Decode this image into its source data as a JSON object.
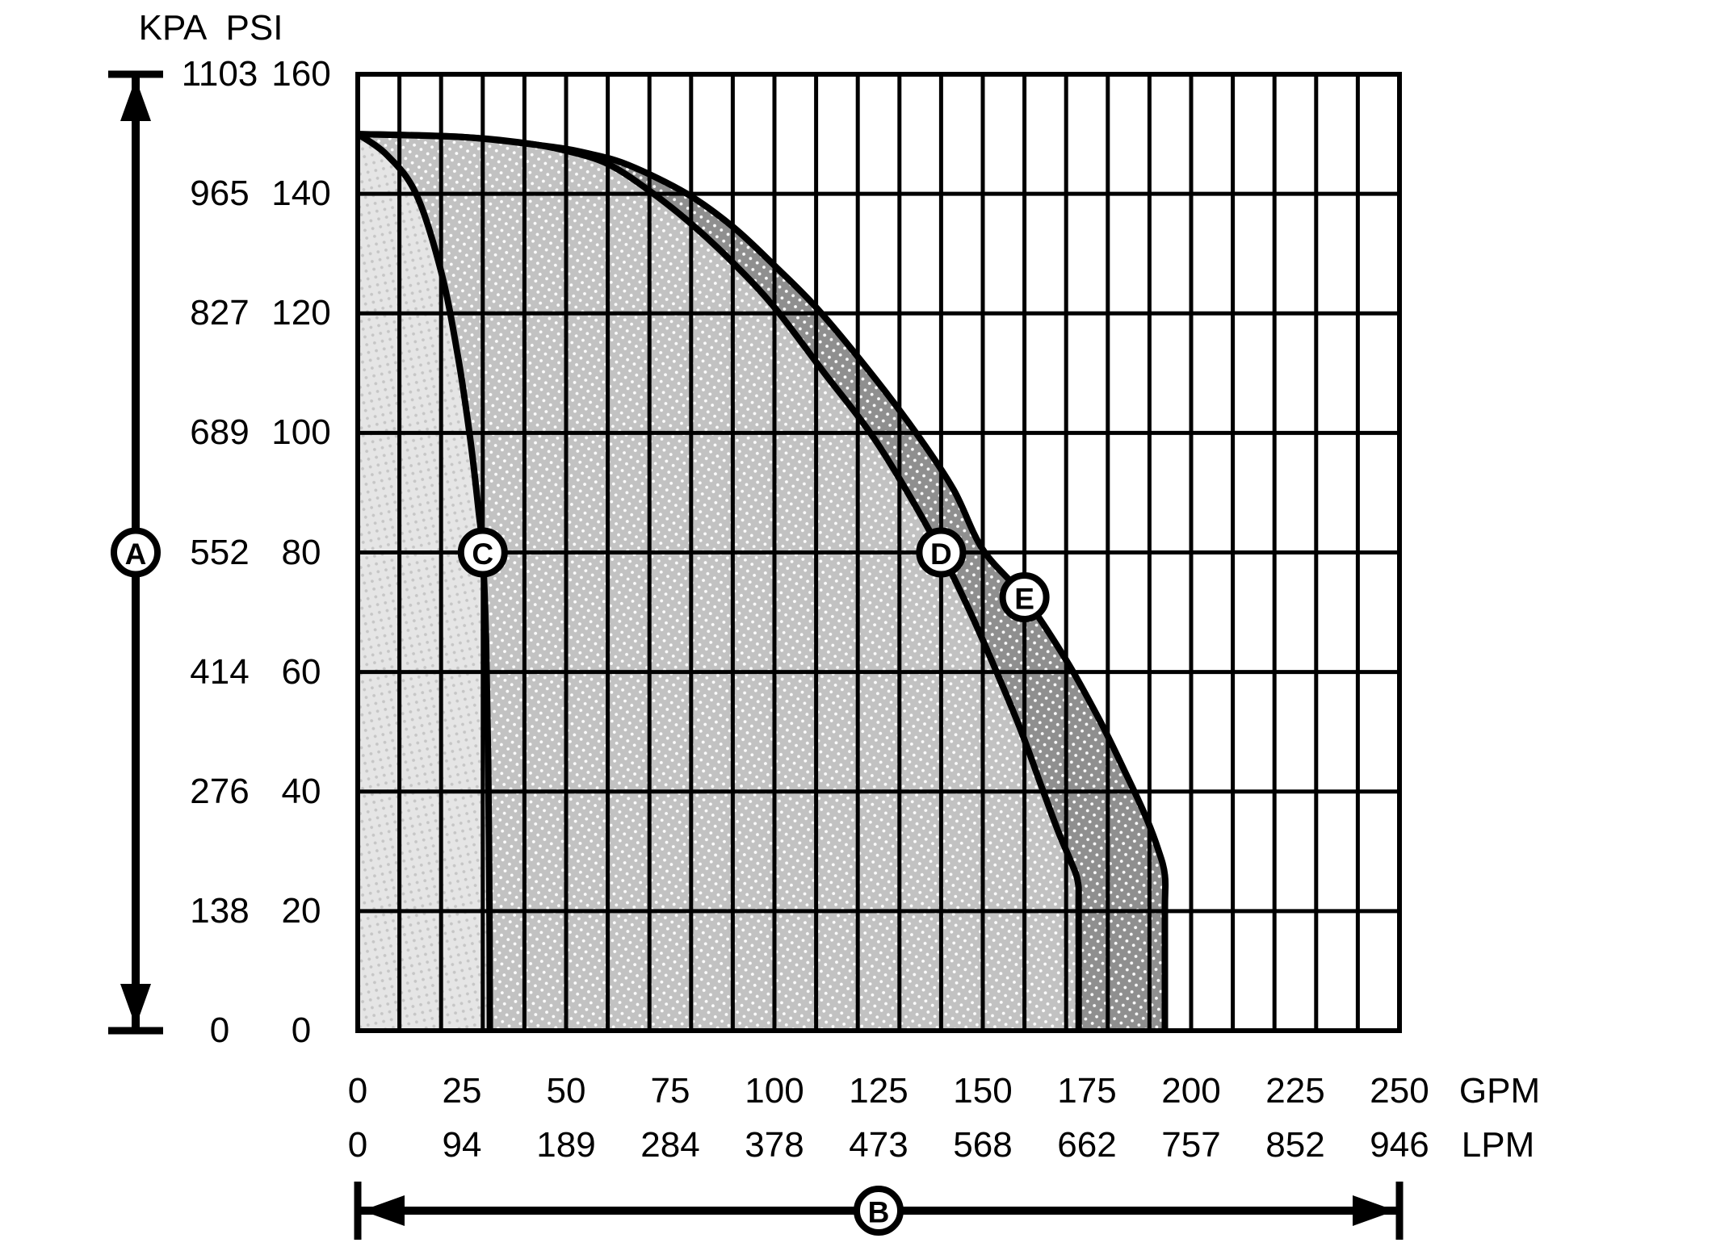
{
  "y_axis": {
    "unit_kpa": "KPA",
    "unit_psi": "PSI",
    "ticks": [
      {
        "kpa": "1103",
        "psi": 160
      },
      {
        "kpa": "965",
        "psi": 140
      },
      {
        "kpa": "827",
        "psi": 120
      },
      {
        "kpa": "689",
        "psi": 100
      },
      {
        "kpa": "552",
        "psi": 80
      },
      {
        "kpa": "414",
        "psi": 60
      },
      {
        "kpa": "276",
        "psi": 40
      },
      {
        "kpa": "138",
        "psi": 20
      },
      {
        "kpa": "0",
        "psi": 0
      }
    ]
  },
  "x_axis": {
    "unit_gpm": "GPM",
    "unit_lpm": "LPM",
    "ticks": [
      {
        "gpm": 0,
        "lpm": "0"
      },
      {
        "gpm": 25,
        "lpm": "94"
      },
      {
        "gpm": 50,
        "lpm": "189"
      },
      {
        "gpm": 75,
        "lpm": "284"
      },
      {
        "gpm": 100,
        "lpm": "378"
      },
      {
        "gpm": 125,
        "lpm": "473"
      },
      {
        "gpm": 150,
        "lpm": "568"
      },
      {
        "gpm": 175,
        "lpm": "662"
      },
      {
        "gpm": 200,
        "lpm": "757"
      },
      {
        "gpm": 225,
        "lpm": "852"
      },
      {
        "gpm": 250,
        "lpm": "946"
      }
    ]
  },
  "chart_data": {
    "type": "area",
    "title": "",
    "description": "Pump performance envelope chart: discharge pressure (KPA/PSI) versus flow (GPM/LPM) with three boundary curves C, D, E and axis-span arrows A (pressure) and B (flow).",
    "x_range_gpm": [
      0,
      250
    ],
    "x_gridline_step_gpm": 10,
    "x_tick_step_gpm": 25,
    "y_range_psi": [
      0,
      160
    ],
    "y_range_kpa": [
      0,
      1103
    ],
    "y_gridline_step_psi": 20,
    "grid": "on",
    "colors": {
      "stroke": "#000000",
      "background": "#ffffff",
      "grid": "#000000"
    },
    "series": [
      {
        "name": "curve-C",
        "letter": "C",
        "fill": "#e5e5e5",
        "dot_color": "#c6c6c6",
        "marker_gpm_psi": [
          30,
          80
        ],
        "points_gpm_psi": [
          [
            0,
            150
          ],
          [
            7,
            146.5
          ],
          [
            14,
            140
          ],
          [
            20,
            127
          ],
          [
            24,
            113
          ],
          [
            27,
            99
          ],
          [
            29,
            87
          ],
          [
            30,
            80
          ],
          [
            30.8,
            65
          ],
          [
            31.3,
            45
          ],
          [
            31.6,
            20
          ],
          [
            31.7,
            0
          ]
        ]
      },
      {
        "name": "curve-D",
        "letter": "D",
        "fill": "#c2c2c2",
        "dot_color": "#ffffff",
        "marker_gpm_psi": [
          140,
          80
        ],
        "points_gpm_psi": [
          [
            0,
            150
          ],
          [
            25,
            149.5
          ],
          [
            40,
            148.5
          ],
          [
            50,
            147.2
          ],
          [
            60,
            145
          ],
          [
            70,
            140.5
          ],
          [
            80,
            135
          ],
          [
            90,
            128.5
          ],
          [
            100,
            121
          ],
          [
            112,
            110
          ],
          [
            123,
            100
          ],
          [
            132,
            90
          ],
          [
            140,
            80
          ],
          [
            147,
            70
          ],
          [
            153,
            60.5
          ],
          [
            159,
            50.5
          ],
          [
            164,
            41
          ],
          [
            168,
            33.5
          ],
          [
            171,
            28.5
          ],
          [
            172.8,
            25
          ],
          [
            173,
            20
          ],
          [
            173,
            0
          ]
        ]
      },
      {
        "name": "curve-E",
        "letter": "E",
        "fill": "#8f8f8f",
        "dot_color": "#ffffff",
        "marker_gpm_psi": [
          160,
          72.5
        ],
        "points_gpm_psi": [
          [
            0,
            150
          ],
          [
            25,
            149.5
          ],
          [
            45,
            148
          ],
          [
            55,
            146.8
          ],
          [
            65,
            144.8
          ],
          [
            79,
            140
          ],
          [
            90,
            134.5
          ],
          [
            100,
            128
          ],
          [
            110,
            121
          ],
          [
            122,
            111
          ],
          [
            134,
            100
          ],
          [
            143,
            90.5
          ],
          [
            150,
            80.5
          ],
          [
            160,
            72.5
          ],
          [
            170,
            62
          ],
          [
            178,
            52
          ],
          [
            184,
            43.5
          ],
          [
            189,
            36
          ],
          [
            192,
            30.5
          ],
          [
            193.7,
            26
          ],
          [
            193.7,
            20
          ],
          [
            193.7,
            0
          ]
        ]
      }
    ],
    "annotations": [
      {
        "letter": "A",
        "role": "pressure-axis-span-arrow"
      },
      {
        "letter": "B",
        "role": "flow-axis-span-arrow"
      }
    ]
  }
}
